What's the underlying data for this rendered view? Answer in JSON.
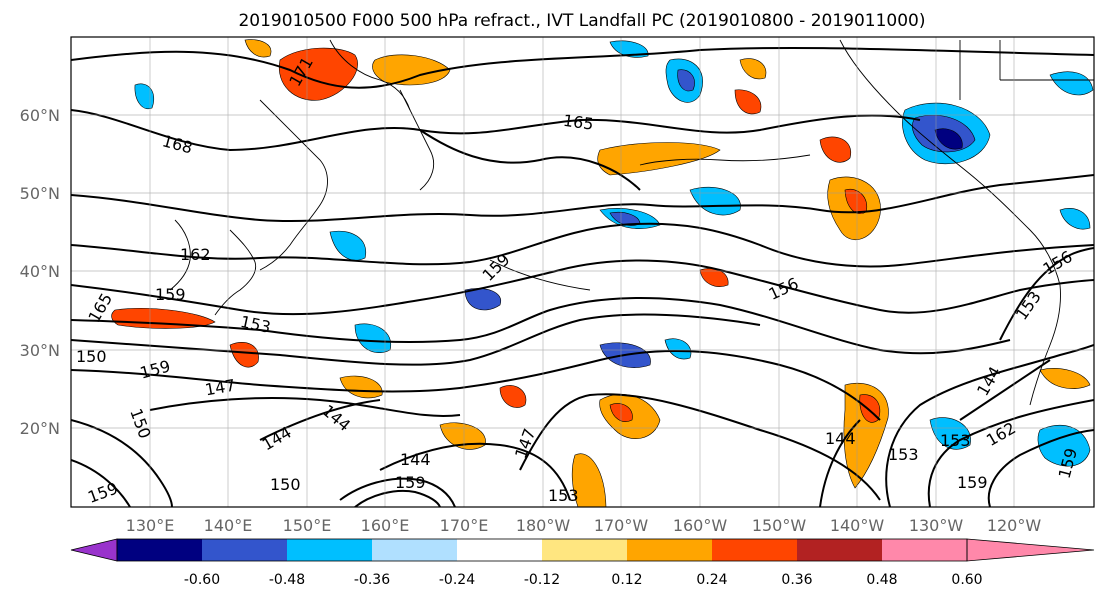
{
  "title": "2019010500 F000 500 hPa refract., IVT Landfall PC (2019010800 - 2019011000)",
  "map": {
    "lat_ticks": [
      "60°N",
      "50°N",
      "40°N",
      "30°N",
      "20°N"
    ],
    "lon_ticks": [
      "130°E",
      "140°E",
      "150°E",
      "160°E",
      "170°E",
      "180°W",
      "170°W",
      "160°W",
      "150°W",
      "140°W",
      "130°W",
      "120°W"
    ]
  },
  "contour_labels": [
    "171",
    "168",
    "165",
    "162",
    "159",
    "159",
    "156",
    "156",
    "153",
    "153",
    "150",
    "150",
    "150",
    "147",
    "147",
    "144",
    "144",
    "144",
    "144",
    "144",
    "159",
    "153",
    "153",
    "159",
    "162",
    "159",
    "153",
    "159",
    "165",
    "159"
  ],
  "colorbar": {
    "tick_labels": [
      "-0.60",
      "-0.48",
      "-0.36",
      "-0.24",
      "-0.12",
      "0.12",
      "0.24",
      "0.36",
      "0.48",
      "0.60"
    ],
    "colors": [
      "#9933cc",
      "#000080",
      "#3355cc",
      "#00bfff",
      "#b0e0ff",
      "#ffffff",
      "#ffe680",
      "#ffa500",
      "#ff4500",
      "#b22222",
      "#ff88aa"
    ]
  }
}
